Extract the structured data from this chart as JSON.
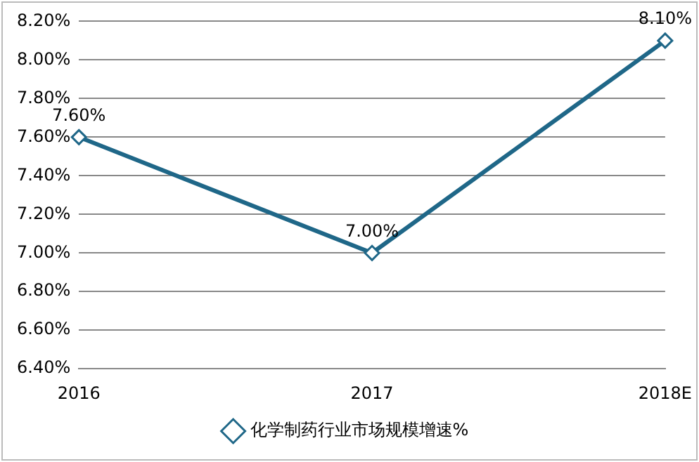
{
  "chart_data": {
    "type": "line",
    "categories": [
      "2016",
      "2017",
      "2018E"
    ],
    "series": [
      {
        "name": "化学制药行业市场规模增速%",
        "color": "#1f6788",
        "values": [
          7.6,
          7.0,
          8.1
        ],
        "value_labels": [
          "7.60%",
          "7.00%",
          "8.10%"
        ]
      }
    ],
    "ylim": [
      6.4,
      8.2
    ],
    "yticks": [
      {
        "value": 6.4,
        "label": "6.40%"
      },
      {
        "value": 6.6,
        "label": "6.60%"
      },
      {
        "value": 6.8,
        "label": "6.80%"
      },
      {
        "value": 7.0,
        "label": "7.00%"
      },
      {
        "value": 7.2,
        "label": "7.20%"
      },
      {
        "value": 7.4,
        "label": "7.40%"
      },
      {
        "value": 7.6,
        "label": "7.60%"
      },
      {
        "value": 7.8,
        "label": "7.80%"
      },
      {
        "value": 8.0,
        "label": "8.00%"
      },
      {
        "value": 8.2,
        "label": "8.20%"
      }
    ],
    "grid": "y",
    "legend": "bottom",
    "marker": "diamond",
    "line_style": "solid"
  }
}
